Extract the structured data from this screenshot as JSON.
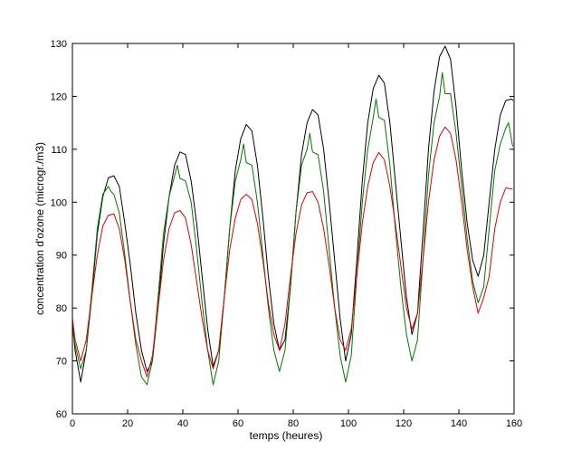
{
  "chart_data": {
    "type": "line",
    "title": "",
    "xlabel": "temps (heures)",
    "ylabel": "concentration d'ozone (microgr./m3)",
    "xlim": [
      0,
      160
    ],
    "ylim": [
      60,
      130
    ],
    "xticks": [
      0,
      20,
      40,
      60,
      80,
      100,
      120,
      140,
      160
    ],
    "yticks": [
      60,
      70,
      80,
      90,
      100,
      110,
      120,
      130
    ],
    "grid": false,
    "legend": "none",
    "series": [
      {
        "color": "#000000",
        "points": [
          [
            0,
            77
          ],
          [
            1,
            72
          ],
          [
            3,
            66
          ],
          [
            5,
            72
          ],
          [
            7,
            82
          ],
          [
            9,
            94
          ],
          [
            11,
            101
          ],
          [
            13,
            104.6
          ],
          [
            15,
            105
          ],
          [
            17,
            103
          ],
          [
            19,
            96
          ],
          [
            21,
            88
          ],
          [
            23,
            79
          ],
          [
            25,
            72
          ],
          [
            27,
            68
          ],
          [
            29,
            70
          ],
          [
            31,
            80
          ],
          [
            33,
            92
          ],
          [
            35,
            101
          ],
          [
            37,
            107
          ],
          [
            39,
            109.5
          ],
          [
            41,
            109
          ],
          [
            43,
            104
          ],
          [
            45,
            96
          ],
          [
            47,
            86
          ],
          [
            49,
            76
          ],
          [
            51,
            69
          ],
          [
            53,
            72
          ],
          [
            55,
            82
          ],
          [
            57,
            95
          ],
          [
            59,
            106
          ],
          [
            61,
            112
          ],
          [
            63,
            114.7
          ],
          [
            65,
            113.5
          ],
          [
            67,
            107
          ],
          [
            69,
            97
          ],
          [
            71,
            86
          ],
          [
            73,
            77
          ],
          [
            75,
            72
          ],
          [
            77,
            74
          ],
          [
            79,
            84
          ],
          [
            81,
            98
          ],
          [
            83,
            109
          ],
          [
            85,
            115
          ],
          [
            87,
            117.5
          ],
          [
            89,
            116.5
          ],
          [
            91,
            110
          ],
          [
            93,
            100
          ],
          [
            95,
            89
          ],
          [
            97,
            78
          ],
          [
            99,
            70
          ],
          [
            101,
            75
          ],
          [
            103,
            89
          ],
          [
            105,
            104
          ],
          [
            107,
            115
          ],
          [
            109,
            121.5
          ],
          [
            111,
            124
          ],
          [
            113,
            122.5
          ],
          [
            115,
            115
          ],
          [
            117,
            104
          ],
          [
            119,
            93
          ],
          [
            121,
            82
          ],
          [
            123,
            75
          ],
          [
            125,
            79
          ],
          [
            127,
            94
          ],
          [
            129,
            110
          ],
          [
            131,
            121
          ],
          [
            133,
            127.5
          ],
          [
            135,
            129.5
          ],
          [
            137,
            127
          ],
          [
            139,
            118
          ],
          [
            141,
            106
          ],
          [
            143,
            96
          ],
          [
            145,
            89
          ],
          [
            147,
            86
          ],
          [
            149,
            90
          ],
          [
            151,
            100
          ],
          [
            153,
            110
          ],
          [
            155,
            116.5
          ],
          [
            157,
            119.2
          ],
          [
            159,
            119.5
          ],
          [
            159.7,
            119.2
          ]
        ]
      },
      {
        "color": "#007700",
        "points": [
          [
            0,
            76
          ],
          [
            1,
            73
          ],
          [
            3,
            68.5
          ],
          [
            5,
            72
          ],
          [
            7,
            83
          ],
          [
            9,
            95
          ],
          [
            11,
            101.5
          ],
          [
            13,
            103
          ],
          [
            14,
            102
          ],
          [
            15,
            101.5
          ],
          [
            17,
            98
          ],
          [
            19,
            90
          ],
          [
            21,
            81
          ],
          [
            23,
            73
          ],
          [
            25,
            67
          ],
          [
            27,
            65.5
          ],
          [
            29,
            70
          ],
          [
            31,
            82
          ],
          [
            33,
            94
          ],
          [
            35,
            101
          ],
          [
            37,
            105
          ],
          [
            38,
            107
          ],
          [
            39,
            104.5
          ],
          [
            41,
            104
          ],
          [
            43,
            100
          ],
          [
            45,
            91
          ],
          [
            47,
            81
          ],
          [
            49,
            72
          ],
          [
            51,
            65.5
          ],
          [
            53,
            70
          ],
          [
            55,
            82
          ],
          [
            57,
            95
          ],
          [
            59,
            104
          ],
          [
            61,
            108
          ],
          [
            62,
            111
          ],
          [
            63,
            107.5
          ],
          [
            65,
            107
          ],
          [
            67,
            100
          ],
          [
            69,
            90
          ],
          [
            71,
            80
          ],
          [
            73,
            72
          ],
          [
            75,
            68
          ],
          [
            77,
            72
          ],
          [
            79,
            84
          ],
          [
            81,
            98
          ],
          [
            83,
            107
          ],
          [
            85,
            110
          ],
          [
            86,
            113
          ],
          [
            87,
            109.5
          ],
          [
            89,
            109
          ],
          [
            91,
            102
          ],
          [
            93,
            91
          ],
          [
            95,
            80
          ],
          [
            97,
            71
          ],
          [
            99,
            66
          ],
          [
            101,
            71
          ],
          [
            103,
            86
          ],
          [
            105,
            100
          ],
          [
            107,
            110
          ],
          [
            109,
            116
          ],
          [
            110,
            119.5
          ],
          [
            111,
            116
          ],
          [
            113,
            115.5
          ],
          [
            115,
            107
          ],
          [
            117,
            95
          ],
          [
            119,
            84
          ],
          [
            121,
            75
          ],
          [
            123,
            70
          ],
          [
            125,
            74
          ],
          [
            127,
            89
          ],
          [
            129,
            105
          ],
          [
            131,
            115
          ],
          [
            133,
            120
          ],
          [
            134,
            124.5
          ],
          [
            135,
            120.5
          ],
          [
            137,
            120.5
          ],
          [
            139,
            113
          ],
          [
            141,
            103
          ],
          [
            143,
            93
          ],
          [
            145,
            85
          ],
          [
            147,
            81
          ],
          [
            149,
            84
          ],
          [
            151,
            95
          ],
          [
            153,
            106
          ],
          [
            155,
            111
          ],
          [
            157,
            114
          ],
          [
            158,
            115
          ],
          [
            159.5,
            110.5
          ]
        ]
      },
      {
        "color": "#dd0000",
        "points": [
          [
            0,
            78
          ],
          [
            1,
            74
          ],
          [
            3,
            70
          ],
          [
            5,
            74
          ],
          [
            7,
            82
          ],
          [
            9,
            90
          ],
          [
            11,
            95.5
          ],
          [
            13,
            97.5
          ],
          [
            15,
            97.8
          ],
          [
            17,
            95
          ],
          [
            19,
            89
          ],
          [
            21,
            81
          ],
          [
            23,
            74
          ],
          [
            25,
            70
          ],
          [
            27,
            67
          ],
          [
            29,
            71
          ],
          [
            31,
            80
          ],
          [
            33,
            89
          ],
          [
            35,
            95
          ],
          [
            37,
            98
          ],
          [
            39,
            98.4
          ],
          [
            41,
            97
          ],
          [
            43,
            92
          ],
          [
            45,
            85
          ],
          [
            47,
            78
          ],
          [
            49,
            72
          ],
          [
            51,
            68.5
          ],
          [
            53,
            72
          ],
          [
            55,
            82
          ],
          [
            57,
            91
          ],
          [
            59,
            97
          ],
          [
            61,
            100.5
          ],
          [
            63,
            101.5
          ],
          [
            65,
            100.5
          ],
          [
            67,
            96
          ],
          [
            69,
            89
          ],
          [
            71,
            81
          ],
          [
            73,
            75
          ],
          [
            75,
            72
          ],
          [
            77,
            77
          ],
          [
            79,
            86
          ],
          [
            81,
            94
          ],
          [
            83,
            99.5
          ],
          [
            85,
            101.8
          ],
          [
            87,
            102
          ],
          [
            89,
            100
          ],
          [
            91,
            95
          ],
          [
            93,
            88
          ],
          [
            95,
            80
          ],
          [
            97,
            74
          ],
          [
            99,
            72
          ],
          [
            101,
            76
          ],
          [
            103,
            86
          ],
          [
            105,
            96
          ],
          [
            107,
            103
          ],
          [
            109,
            107.5
          ],
          [
            111,
            109.4
          ],
          [
            113,
            108
          ],
          [
            115,
            103
          ],
          [
            117,
            96
          ],
          [
            119,
            88
          ],
          [
            121,
            80
          ],
          [
            123,
            76
          ],
          [
            125,
            79
          ],
          [
            127,
            89
          ],
          [
            129,
            100
          ],
          [
            131,
            108
          ],
          [
            133,
            112.5
          ],
          [
            135,
            114.2
          ],
          [
            137,
            113
          ],
          [
            139,
            108
          ],
          [
            141,
            100
          ],
          [
            143,
            91
          ],
          [
            145,
            84
          ],
          [
            147,
            79
          ],
          [
            149,
            82
          ],
          [
            151,
            86
          ],
          [
            153,
            95
          ],
          [
            155,
            100
          ],
          [
            157,
            102.7
          ],
          [
            159.5,
            102.5
          ]
        ]
      }
    ]
  }
}
